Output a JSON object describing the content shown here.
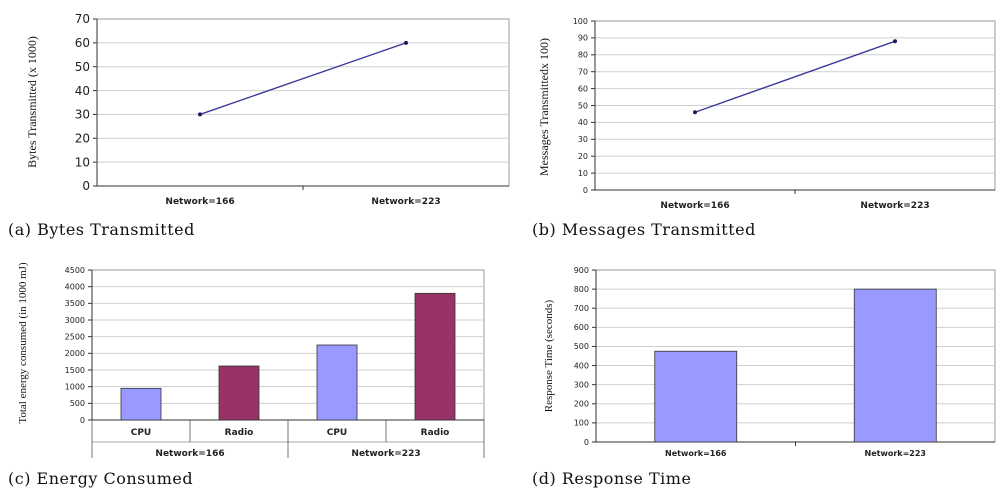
{
  "chart_data": [
    {
      "id": "a",
      "type": "line",
      "caption": "(a) Bytes Transmitted",
      "ylabel": "Bytes Transmitted (x 1000)",
      "xlabel": "",
      "categories": [
        "Network=166",
        "Network=223"
      ],
      "series": [
        {
          "values": [
            30,
            60
          ]
        }
      ],
      "ylim": [
        0,
        70
      ],
      "yticks": [
        0,
        10,
        20,
        30,
        40,
        50,
        60,
        70
      ],
      "colors": {
        "line": "#3a3a9a"
      },
      "grid": true
    },
    {
      "id": "b",
      "type": "line",
      "caption": "(b) Messages Transmitted",
      "ylabel": "Messages Transmittedx 100)",
      "xlabel": "",
      "categories": [
        "Network=166",
        "Network=223"
      ],
      "series": [
        {
          "values": [
            46,
            88
          ]
        }
      ],
      "ylim": [
        0,
        100
      ],
      "yticks": [
        0,
        10,
        20,
        30,
        40,
        50,
        60,
        70,
        80,
        90,
        100
      ],
      "colors": {
        "line": "#3a3a9a"
      },
      "grid": true
    },
    {
      "id": "c",
      "type": "bar",
      "caption": "(c) Energy Consumed",
      "ylabel": "Total energy consumed (in 1000 mJ)",
      "xlabel": "",
      "groups": [
        "Network=166",
        "Network=223"
      ],
      "categories": [
        "CPU",
        "Radio",
        "CPU",
        "Radio"
      ],
      "values": [
        950,
        1620,
        2250,
        3800
      ],
      "ylim": [
        0,
        4500
      ],
      "yticks": [
        0,
        500,
        1000,
        1500,
        2000,
        2500,
        3000,
        3500,
        4000,
        4500
      ],
      "colors": {
        "CPU": "#9999ff",
        "Radio": "#993366"
      },
      "grid": true
    },
    {
      "id": "d",
      "type": "bar",
      "caption": "(d) Response Time",
      "ylabel": "Response Time (seconds)",
      "xlabel": "",
      "categories": [
        "Network=166",
        "Network=223"
      ],
      "values": [
        475,
        800
      ],
      "ylim": [
        0,
        900
      ],
      "yticks": [
        0,
        100,
        200,
        300,
        400,
        500,
        600,
        700,
        800,
        900
      ],
      "colors": {
        "bar": "#9999ff"
      },
      "grid": true
    }
  ]
}
